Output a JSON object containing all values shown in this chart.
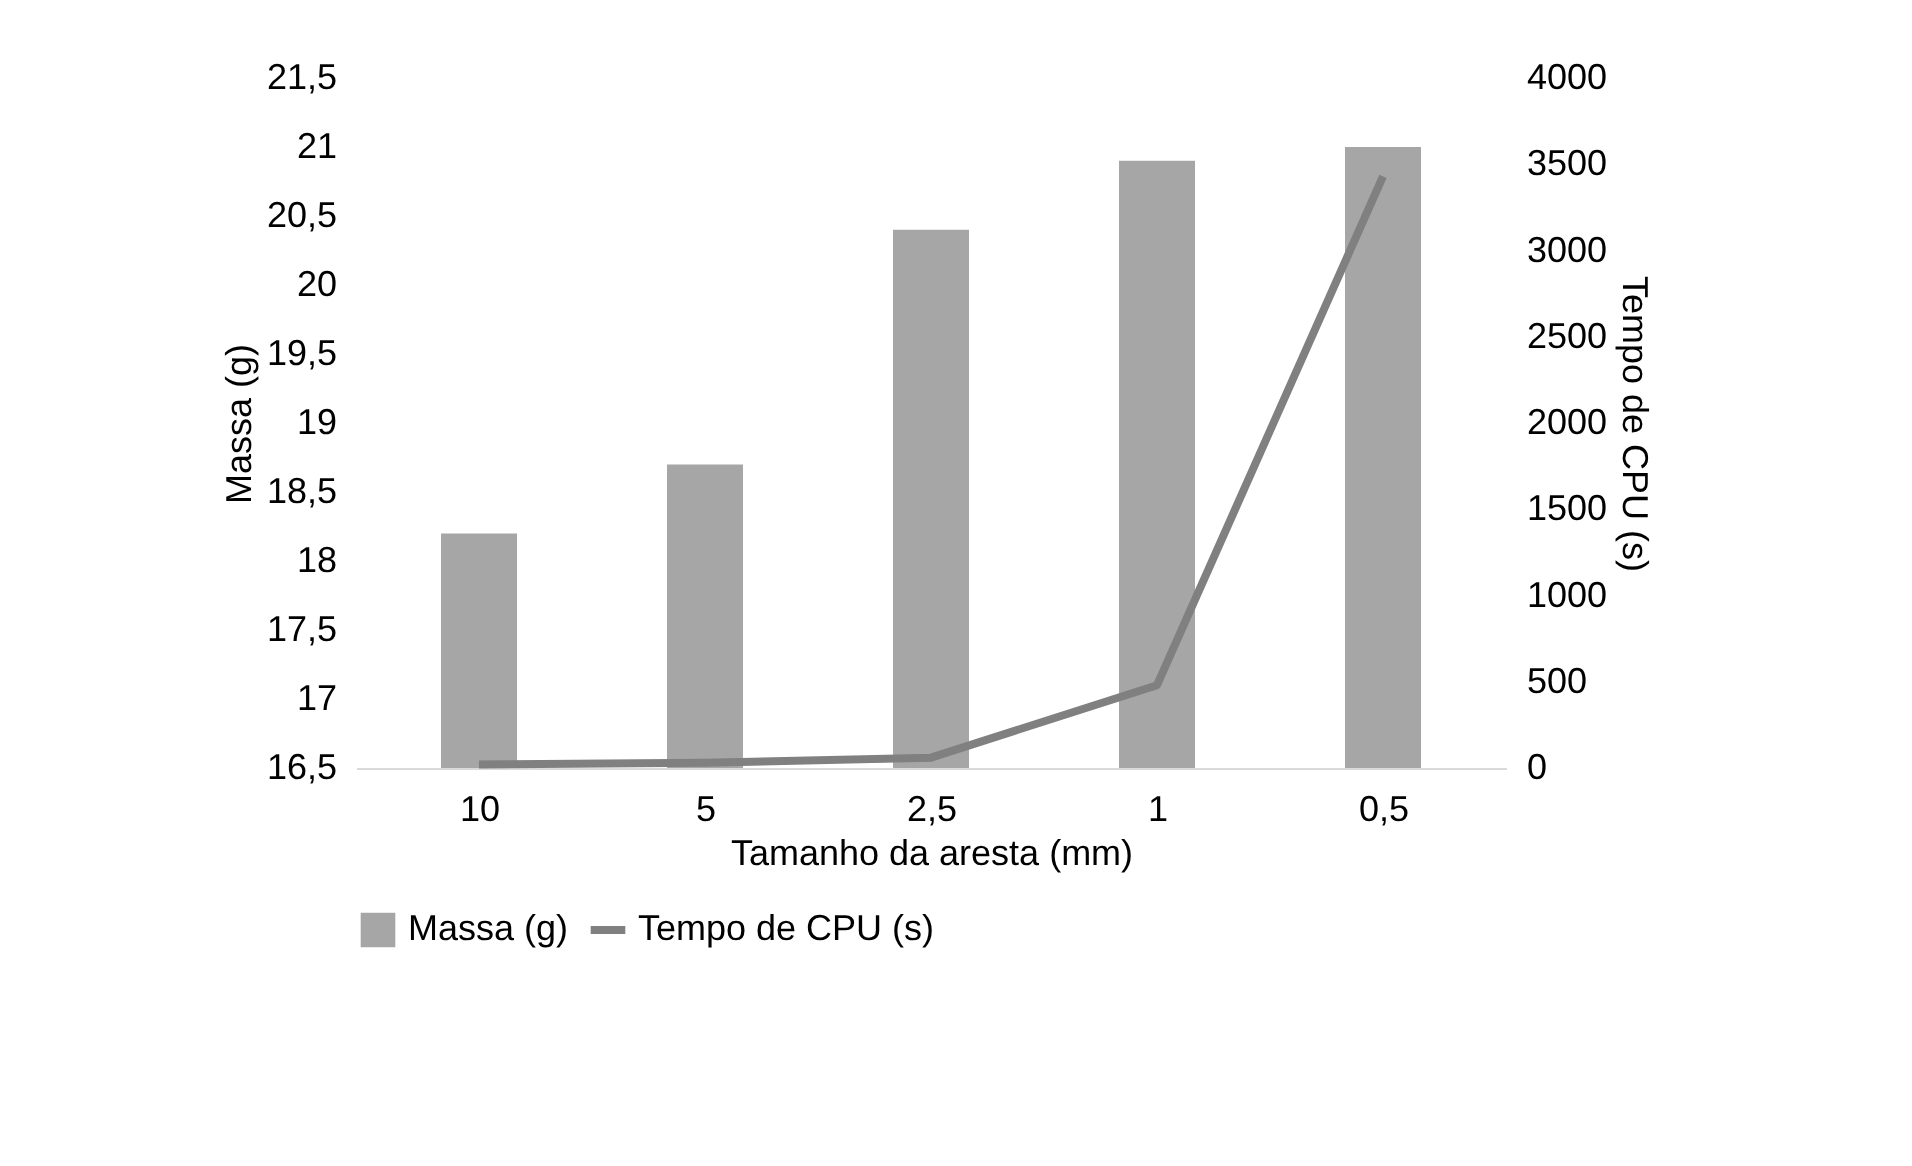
{
  "chart_data": {
    "type": "bar",
    "xlabel": "Tamanho da aresta (mm)",
    "ylabel": "Massa  (g)",
    "y2label": "Tempo de CPU (s)",
    "categories": [
      "10",
      "5",
      "2,5",
      "1",
      "0,5"
    ],
    "series": [
      {
        "name": "Massa (g)",
        "color": "#a6a6a6",
        "values": [
          18.2,
          18.7,
          20.4,
          20.9,
          21.0
        ]
      },
      {
        "name": "Tempo de CPU (s)",
        "type": "line",
        "axis": "y2",
        "color": "#808080",
        "values": [
          20,
          30,
          60,
          480,
          3430
        ]
      }
    ],
    "ylim": [
      16.5,
      21.5
    ],
    "yticks": [
      {
        "value": 16.5,
        "label": "16,5"
      },
      17,
      {
        "value": 17.5,
        "label": "17,5"
      },
      18,
      {
        "value": 18.5,
        "label": "18,5"
      },
      19,
      {
        "value": 19.5,
        "label": "19,5"
      },
      20,
      {
        "value": 20.5,
        "label": "20,5"
      },
      21,
      {
        "value": 21.5,
        "label": "21,5"
      }
    ],
    "y2lim": [
      0,
      4000
    ],
    "y2ticks": [
      0,
      500,
      1000,
      1500,
      2000,
      2500,
      3000,
      3500,
      4000
    ],
    "grid": false,
    "legend": "bottom",
    "marker": "none",
    "line_style": "solid"
  }
}
